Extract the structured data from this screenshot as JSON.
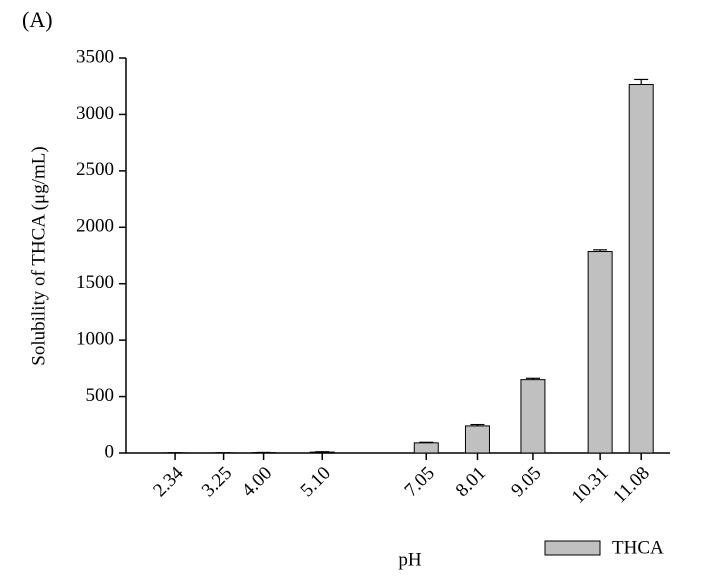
{
  "chart_data": {
    "type": "bar",
    "annotation": "(A)",
    "x_label": "pH",
    "y_label": "Solubility of THCA (μg/mL)",
    "x": [
      2.34,
      3.25,
      4.0,
      5.1,
      7.05,
      8.01,
      9.05,
      10.31,
      11.08
    ],
    "series": [
      {
        "name": "THCA",
        "color": "#c0c0c0",
        "values": [
          1,
          1,
          3,
          8,
          90,
          240,
          650,
          1785,
          3265
        ],
        "errors": [
          1,
          1,
          2,
          3,
          5,
          12,
          12,
          15,
          45
        ]
      }
    ],
    "xlim": [
      1.42,
      11.62
    ],
    "xticks": [
      {
        "value": 2.34,
        "label": "2.34"
      },
      {
        "value": 3.25,
        "label": "3.25"
      },
      {
        "value": 4.0,
        "label": "4.00"
      },
      {
        "value": 5.1,
        "label": "5.10"
      },
      {
        "value": 7.05,
        "label": "7.05"
      },
      {
        "value": 8.01,
        "label": "8.01"
      },
      {
        "value": 9.05,
        "label": "9.05"
      },
      {
        "value": 10.31,
        "label": "10.31"
      },
      {
        "value": 11.08,
        "label": "11.08"
      }
    ],
    "ylim": [
      0,
      3500
    ],
    "yticks": [
      0,
      500,
      1000,
      1500,
      2000,
      2500,
      3000,
      3500
    ],
    "legend": "bottom-right"
  }
}
